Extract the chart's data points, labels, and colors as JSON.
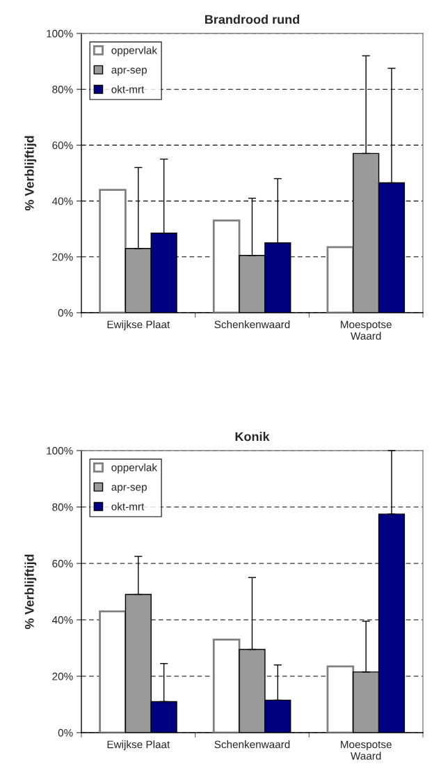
{
  "chart_data": [
    {
      "type": "bar",
      "title": "Brandrood rund",
      "ylabel": "% Verblijftijd",
      "categories": [
        "Ewijkse Plaat",
        "Schenkenwaard",
        "Moespotse\nWaard"
      ],
      "series": [
        {
          "name": "oppervlak",
          "color": "#ffffff",
          "values": [
            44,
            33,
            23.5
          ]
        },
        {
          "name": "apr-sep",
          "color": "#999999",
          "values": [
            23,
            20.5,
            57
          ],
          "errors": [
            [
              23,
              52
            ],
            [
              20.5,
              41
            ],
            [
              57,
              92
            ]
          ]
        },
        {
          "name": "okt-mrt",
          "color": "#000080",
          "values": [
            28.5,
            25,
            46.5
          ],
          "errors": [
            [
              28.5,
              55
            ],
            [
              25,
              48
            ],
            [
              46.5,
              87.5
            ]
          ]
        }
      ],
      "ylim": [
        0,
        100
      ],
      "yticks": [
        {
          "value": 0,
          "label": "0%"
        },
        {
          "value": 20,
          "label": "20%"
        },
        {
          "value": 40,
          "label": "40%"
        },
        {
          "value": 60,
          "label": "60%"
        },
        {
          "value": 80,
          "label": "80%"
        },
        {
          "value": 100,
          "label": "100%"
        }
      ],
      "grid": "y",
      "legend": "top left"
    },
    {
      "type": "bar",
      "title": "Konik",
      "ylabel": "% Verblijftijd",
      "categories": [
        "Ewijkse Plaat",
        "Schenkenwaard",
        "Moespotse\nWaard"
      ],
      "series": [
        {
          "name": "oppervlak",
          "color": "#ffffff",
          "values": [
            43,
            33,
            23.5
          ]
        },
        {
          "name": "apr-sep",
          "color": "#999999",
          "values": [
            49,
            29.5,
            21.5
          ],
          "errors": [
            [
              49,
              62.5
            ],
            [
              29.5,
              55
            ],
            [
              21.5,
              39.5
            ]
          ]
        },
        {
          "name": "okt-mrt",
          "color": "#000080",
          "values": [
            11,
            11.5,
            77.5
          ],
          "errors": [
            [
              11,
              24.5
            ],
            [
              11.5,
              24
            ],
            [
              77.5,
              100
            ]
          ]
        }
      ],
      "ylim": [
        0,
        100
      ],
      "yticks": [
        {
          "value": 0,
          "label": "0%"
        },
        {
          "value": 20,
          "label": "20%"
        },
        {
          "value": 40,
          "label": "40%"
        },
        {
          "value": 60,
          "label": "60%"
        },
        {
          "value": 80,
          "label": "80%"
        },
        {
          "value": 100,
          "label": "100%"
        }
      ],
      "grid": "y",
      "legend": "top left"
    }
  ]
}
